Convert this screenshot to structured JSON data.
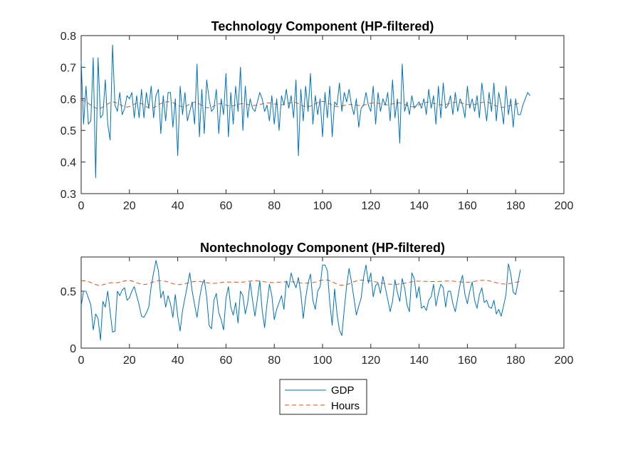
{
  "colors": {
    "gdp": "#0072BD",
    "hours": "#D95319",
    "axis": "#262626",
    "background": "#ffffff"
  },
  "legend": {
    "placement": "below-bottom-plot",
    "entries": [
      "GDP",
      "Hours"
    ]
  },
  "chart_data": [
    {
      "type": "line",
      "title": "Technology Component (HP-filtered)",
      "xlabel": "",
      "ylabel": "",
      "xlim": [
        0,
        200
      ],
      "ylim": [
        0.3,
        0.8
      ],
      "xticks": [
        "0",
        "20",
        "40",
        "60",
        "80",
        "100",
        "120",
        "140",
        "160",
        "180",
        "200"
      ],
      "yticks": [
        "0.3",
        "0.4",
        "0.5",
        "0.6",
        "0.7",
        "0.8"
      ],
      "grid": false,
      "x_start": 0,
      "series": [
        {
          "name": "GDP",
          "style": "solid",
          "values": [
            0.72,
            0.52,
            0.64,
            0.52,
            0.53,
            0.73,
            0.35,
            0.73,
            0.54,
            0.55,
            0.66,
            0.52,
            0.47,
            0.77,
            0.58,
            0.56,
            0.62,
            0.55,
            0.57,
            0.61,
            0.6,
            0.62,
            0.54,
            0.61,
            0.54,
            0.63,
            0.54,
            0.62,
            0.57,
            0.64,
            0.54,
            0.61,
            0.63,
            0.49,
            0.61,
            0.53,
            0.62,
            0.62,
            0.51,
            0.6,
            0.42,
            0.64,
            0.55,
            0.62,
            0.53,
            0.56,
            0.59,
            0.52,
            0.71,
            0.48,
            0.63,
            0.49,
            0.66,
            0.6,
            0.56,
            0.57,
            0.63,
            0.49,
            0.6,
            0.55,
            0.68,
            0.48,
            0.62,
            0.52,
            0.64,
            0.56,
            0.7,
            0.5,
            0.64,
            0.54,
            0.6,
            0.57,
            0.56,
            0.59,
            0.62,
            0.6,
            0.56,
            0.58,
            0.53,
            0.61,
            0.52,
            0.6,
            0.5,
            0.61,
            0.58,
            0.63,
            0.57,
            0.61,
            0.54,
            0.66,
            0.42,
            0.63,
            0.53,
            0.64,
            0.56,
            0.68,
            0.52,
            0.61,
            0.55,
            0.6,
            0.48,
            0.62,
            0.54,
            0.64,
            0.48,
            0.59,
            0.58,
            0.65,
            0.56,
            0.62,
            0.59,
            0.63,
            0.58,
            0.55,
            0.6,
            0.51,
            0.57,
            0.58,
            0.62,
            0.58,
            0.56,
            0.64,
            0.52,
            0.62,
            0.56,
            0.6,
            0.58,
            0.62,
            0.53,
            0.66,
            0.54,
            0.6,
            0.46,
            0.71,
            0.56,
            0.59,
            0.55,
            0.61,
            0.57,
            0.58,
            0.59,
            0.57,
            0.6,
            0.55,
            0.63,
            0.57,
            0.61,
            0.52,
            0.64,
            0.54,
            0.65,
            0.57,
            0.58,
            0.61,
            0.55,
            0.62,
            0.56,
            0.6,
            0.58,
            0.54,
            0.64,
            0.57,
            0.6,
            0.56,
            0.61,
            0.54,
            0.65,
            0.59,
            0.53,
            0.62,
            0.56,
            0.65,
            0.53,
            0.62,
            0.58,
            0.52,
            0.64,
            0.55,
            0.6,
            0.51,
            0.6,
            0.55,
            0.55,
            0.58,
            0.6,
            0.62,
            0.61
          ]
        },
        {
          "name": "Hours",
          "style": "dashed",
          "values": [
            0.596,
            0.594,
            0.59,
            0.585,
            0.58,
            0.575,
            0.571,
            0.569,
            0.57,
            0.574,
            0.579,
            0.584,
            0.588,
            0.59,
            0.589,
            0.586,
            0.582,
            0.578,
            0.575,
            0.574,
            0.576,
            0.579,
            0.583,
            0.586,
            0.587,
            0.585,
            0.58,
            0.575,
            0.571,
            0.57,
            0.572,
            0.576,
            0.581,
            0.585,
            0.588,
            0.59,
            0.591,
            0.59,
            0.588,
            0.584,
            0.58,
            0.577,
            0.575,
            0.576,
            0.579,
            0.583,
            0.587,
            0.589,
            0.588,
            0.584,
            0.579,
            0.575,
            0.572,
            0.571,
            0.573,
            0.577,
            0.581,
            0.584,
            0.585,
            0.583,
            0.58,
            0.578,
            0.577,
            0.578,
            0.58,
            0.582,
            0.584,
            0.585,
            0.584,
            0.582,
            0.58,
            0.579,
            0.579,
            0.58,
            0.582,
            0.584,
            0.586,
            0.587,
            0.587,
            0.586,
            0.584,
            0.582,
            0.581,
            0.581,
            0.582,
            0.584,
            0.586,
            0.588,
            0.589,
            0.588,
            0.585,
            0.581,
            0.577,
            0.575,
            0.575,
            0.577,
            0.58,
            0.584,
            0.588,
            0.591,
            0.592,
            0.591,
            0.588,
            0.584,
            0.58,
            0.577,
            0.575,
            0.575,
            0.577,
            0.579,
            0.581,
            0.582,
            0.582,
            0.581,
            0.58,
            0.579,
            0.579,
            0.58,
            0.582,
            0.584,
            0.586,
            0.587,
            0.587,
            0.586,
            0.584,
            0.582,
            0.581,
            0.581,
            0.582,
            0.584,
            0.586,
            0.587,
            0.587,
            0.585,
            0.582,
            0.579,
            0.576,
            0.575,
            0.576,
            0.578,
            0.581,
            0.584,
            0.587,
            0.589,
            0.589,
            0.588,
            0.586,
            0.584,
            0.582,
            0.581,
            0.581,
            0.582,
            0.584,
            0.586,
            0.588,
            0.589,
            0.589,
            0.588,
            0.586,
            0.584,
            0.582,
            0.581,
            0.581,
            0.582,
            0.584,
            0.586,
            0.588,
            0.59,
            0.59,
            0.588,
            0.585,
            0.581,
            0.577,
            0.574,
            0.573,
            0.573,
            0.575,
            0.577,
            0.579,
            0.581,
            0.583,
            0.585,
            0.587
          ]
        }
      ]
    },
    {
      "type": "line",
      "title": "Nontechnology Component (HP-filtered)",
      "xlabel": "",
      "ylabel": "",
      "xlim": [
        0,
        200
      ],
      "ylim": [
        0,
        0.8
      ],
      "xticks": [
        "0",
        "20",
        "40",
        "60",
        "80",
        "100",
        "120",
        "140",
        "160",
        "180",
        "200"
      ],
      "yticks": [
        "0",
        "0.5"
      ],
      "grid": false,
      "x_start": 0,
      "series": [
        {
          "name": "GDP",
          "style": "solid",
          "values": [
            0.37,
            0.5,
            0.5,
            0.44,
            0.38,
            0.16,
            0.3,
            0.26,
            0.07,
            0.41,
            0.36,
            0.5,
            0.32,
            0.14,
            0.15,
            0.5,
            0.46,
            0.51,
            0.53,
            0.42,
            0.44,
            0.5,
            0.54,
            0.46,
            0.38,
            0.28,
            0.27,
            0.31,
            0.36,
            0.54,
            0.66,
            0.77,
            0.68,
            0.44,
            0.5,
            0.36,
            0.46,
            0.39,
            0.27,
            0.47,
            0.28,
            0.15,
            0.33,
            0.44,
            0.55,
            0.66,
            0.5,
            0.38,
            0.27,
            0.43,
            0.55,
            0.6,
            0.45,
            0.2,
            0.17,
            0.42,
            0.48,
            0.31,
            0.25,
            0.16,
            0.44,
            0.54,
            0.36,
            0.29,
            0.4,
            0.22,
            0.5,
            0.46,
            0.3,
            0.4,
            0.58,
            0.42,
            0.28,
            0.43,
            0.59,
            0.33,
            0.18,
            0.39,
            0.56,
            0.46,
            0.25,
            0.34,
            0.4,
            0.46,
            0.34,
            0.59,
            0.53,
            0.66,
            0.58,
            0.53,
            0.62,
            0.48,
            0.26,
            0.44,
            0.57,
            0.65,
            0.42,
            0.34,
            0.5,
            0.54,
            0.73,
            0.73,
            0.68,
            0.4,
            0.2,
            0.52,
            0.3,
            0.16,
            0.11,
            0.34,
            0.55,
            0.7,
            0.58,
            0.44,
            0.29,
            0.37,
            0.44,
            0.62,
            0.73,
            0.57,
            0.66,
            0.45,
            0.55,
            0.57,
            0.48,
            0.63,
            0.53,
            0.43,
            0.32,
            0.41,
            0.6,
            0.49,
            0.41,
            0.61,
            0.53,
            0.38,
            0.32,
            0.66,
            0.61,
            0.44,
            0.54,
            0.35,
            0.37,
            0.33,
            0.42,
            0.45,
            0.56,
            0.37,
            0.48,
            0.56,
            0.53,
            0.36,
            0.5,
            0.5,
            0.39,
            0.32,
            0.44,
            0.56,
            0.64,
            0.47,
            0.39,
            0.5,
            0.58,
            0.42,
            0.35,
            0.47,
            0.53,
            0.4,
            0.42,
            0.36,
            0.35,
            0.42,
            0.3,
            0.34,
            0.28,
            0.37,
            0.47,
            0.74,
            0.65,
            0.49,
            0.47,
            0.58,
            0.69
          ]
        },
        {
          "name": "Hours",
          "style": "dashed",
          "values": [
            0.59,
            0.592,
            0.59,
            0.584,
            0.576,
            0.566,
            0.558,
            0.553,
            0.552,
            0.556,
            0.562,
            0.568,
            0.573,
            0.574,
            0.574,
            0.575,
            0.578,
            0.584,
            0.59,
            0.594,
            0.594,
            0.59,
            0.583,
            0.574,
            0.566,
            0.56,
            0.558,
            0.56,
            0.566,
            0.574,
            0.582,
            0.588,
            0.592,
            0.592,
            0.59,
            0.586,
            0.58,
            0.573,
            0.566,
            0.561,
            0.558,
            0.558,
            0.56,
            0.565,
            0.571,
            0.577,
            0.582,
            0.585,
            0.586,
            0.585,
            0.582,
            0.578,
            0.574,
            0.571,
            0.569,
            0.569,
            0.57,
            0.573,
            0.576,
            0.578,
            0.58,
            0.58,
            0.58,
            0.58,
            0.579,
            0.579,
            0.579,
            0.58,
            0.582,
            0.585,
            0.588,
            0.59,
            0.591,
            0.59,
            0.588,
            0.585,
            0.582,
            0.579,
            0.577,
            0.576,
            0.576,
            0.577,
            0.578,
            0.58,
            0.581,
            0.582,
            0.582,
            0.582,
            0.581,
            0.579,
            0.576,
            0.573,
            0.571,
            0.57,
            0.57,
            0.572,
            0.575,
            0.58,
            0.586,
            0.592,
            0.597,
            0.599,
            0.598,
            0.592,
            0.583,
            0.572,
            0.562,
            0.555,
            0.552,
            0.553,
            0.558,
            0.565,
            0.574,
            0.583,
            0.59,
            0.595,
            0.597,
            0.597,
            0.595,
            0.592,
            0.589,
            0.585,
            0.581,
            0.577,
            0.573,
            0.569,
            0.566,
            0.563,
            0.561,
            0.56,
            0.56,
            0.561,
            0.563,
            0.566,
            0.57,
            0.574,
            0.578,
            0.582,
            0.585,
            0.587,
            0.588,
            0.588,
            0.587,
            0.586,
            0.585,
            0.584,
            0.584,
            0.584,
            0.585,
            0.586,
            0.587,
            0.588,
            0.589,
            0.589,
            0.588,
            0.586,
            0.584,
            0.582,
            0.58,
            0.579,
            0.579,
            0.58,
            0.583,
            0.586,
            0.59,
            0.593,
            0.595,
            0.595,
            0.594,
            0.591,
            0.586,
            0.58,
            0.574,
            0.569,
            0.565,
            0.563,
            0.563,
            0.565,
            0.569,
            0.573,
            0.578,
            0.582,
            0.585
          ]
        }
      ]
    }
  ]
}
